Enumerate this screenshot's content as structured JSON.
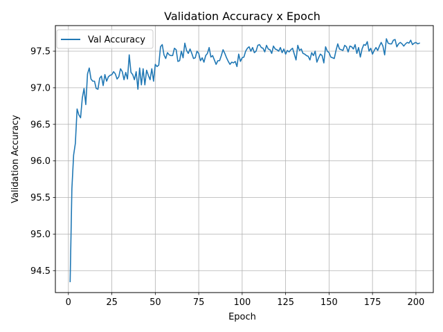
{
  "chart_data": {
    "type": "line",
    "title": "Validation Accuracy x Epoch",
    "xlabel": "Epoch",
    "ylabel": "Validation Accuracy",
    "xlim": [
      -7.5,
      210
    ],
    "ylim": [
      94.2,
      97.85
    ],
    "xticks": [
      0,
      25,
      50,
      75,
      100,
      125,
      150,
      175,
      200
    ],
    "yticks": [
      94.5,
      95.0,
      95.5,
      96.0,
      96.5,
      97.0,
      97.5
    ],
    "ytick_labels": [
      "94.5",
      "95.0",
      "95.5",
      "96.0",
      "96.5",
      "97.0",
      "97.5"
    ],
    "grid": true,
    "legend_position": "top-left",
    "series": [
      {
        "name": "Val Accuracy",
        "color": "#1f77b4",
        "x_start": 1,
        "values": [
          94.35,
          95.62,
          96.08,
          96.24,
          96.71,
          96.63,
          96.59,
          96.86,
          96.99,
          96.77,
          97.19,
          97.27,
          97.12,
          97.09,
          97.09,
          96.99,
          96.98,
          97.13,
          97.16,
          97.03,
          97.18,
          97.09,
          97.15,
          97.17,
          97.18,
          97.22,
          97.19,
          97.12,
          97.15,
          97.26,
          97.22,
          97.11,
          97.21,
          97.12,
          97.45,
          97.21,
          97.18,
          97.11,
          97.22,
          96.98,
          97.27,
          97.04,
          97.26,
          97.04,
          97.24,
          97.17,
          97.11,
          97.26,
          97.09,
          97.32,
          97.29,
          97.31,
          97.56,
          97.59,
          97.45,
          97.4,
          97.48,
          97.45,
          97.44,
          97.44,
          97.54,
          97.52,
          97.36,
          97.37,
          97.5,
          97.41,
          97.61,
          97.51,
          97.47,
          97.53,
          97.47,
          97.4,
          97.41,
          97.5,
          97.47,
          97.37,
          97.41,
          97.35,
          97.44,
          97.47,
          97.55,
          97.42,
          97.44,
          97.38,
          97.32,
          97.37,
          97.37,
          97.44,
          97.52,
          97.47,
          97.41,
          97.36,
          97.32,
          97.35,
          97.34,
          97.36,
          97.29,
          97.46,
          97.36,
          97.41,
          97.42,
          97.5,
          97.54,
          97.56,
          97.5,
          97.55,
          97.48,
          97.5,
          97.58,
          97.59,
          97.55,
          97.54,
          97.49,
          97.58,
          97.53,
          97.52,
          97.47,
          97.57,
          97.53,
          97.52,
          97.5,
          97.55,
          97.48,
          97.53,
          97.46,
          97.51,
          97.49,
          97.52,
          97.54,
          97.46,
          97.38,
          97.58,
          97.51,
          97.53,
          97.47,
          97.46,
          97.44,
          97.43,
          97.38,
          97.48,
          97.44,
          97.5,
          97.35,
          97.41,
          97.46,
          97.44,
          97.34,
          97.56,
          97.5,
          97.48,
          97.42,
          97.41,
          97.4,
          97.51,
          97.6,
          97.53,
          97.52,
          97.51,
          97.58,
          97.56,
          97.49,
          97.57,
          97.56,
          97.53,
          97.59,
          97.47,
          97.55,
          97.42,
          97.53,
          97.59,
          97.58,
          97.63,
          97.5,
          97.54,
          97.46,
          97.51,
          97.55,
          97.51,
          97.57,
          97.62,
          97.57,
          97.45,
          97.67,
          97.61,
          97.6,
          97.6,
          97.65,
          97.66,
          97.56,
          97.6,
          97.62,
          97.6,
          97.57,
          97.6,
          97.62,
          97.61,
          97.65,
          97.59,
          97.61,
          97.62,
          97.6,
          97.61
        ]
      }
    ]
  }
}
